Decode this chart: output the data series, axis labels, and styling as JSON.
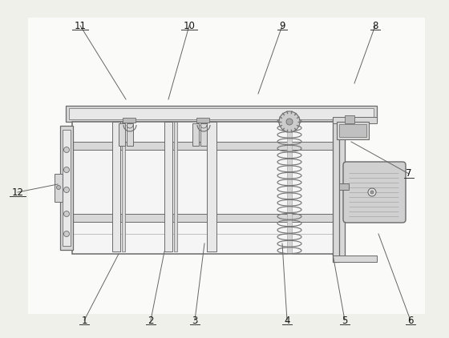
{
  "bg": "#f0f0eb",
  "lc": "#6a6a6a",
  "lc2": "#888888",
  "fc_body": "#f5f5f5",
  "fc_gray": "#d8d8d8",
  "fc_lgray": "#e8e8e8",
  "fc_dgray": "#bbbbbb",
  "fc_white": "#ffffff",
  "label_data": [
    [
      "1",
      105,
      22,
      148,
      105
    ],
    [
      "2",
      188,
      22,
      205,
      108
    ],
    [
      "3",
      243,
      22,
      255,
      118
    ],
    [
      "4",
      358,
      22,
      352,
      118
    ],
    [
      "5",
      430,
      22,
      415,
      105
    ],
    [
      "6",
      512,
      22,
      472,
      130
    ],
    [
      "7",
      510,
      205,
      438,
      245
    ],
    [
      "8",
      468,
      390,
      442,
      318
    ],
    [
      "9",
      352,
      390,
      322,
      305
    ],
    [
      "10",
      236,
      390,
      210,
      298
    ],
    [
      "11",
      100,
      390,
      157,
      298
    ],
    [
      "12",
      22,
      182,
      72,
      192
    ]
  ]
}
